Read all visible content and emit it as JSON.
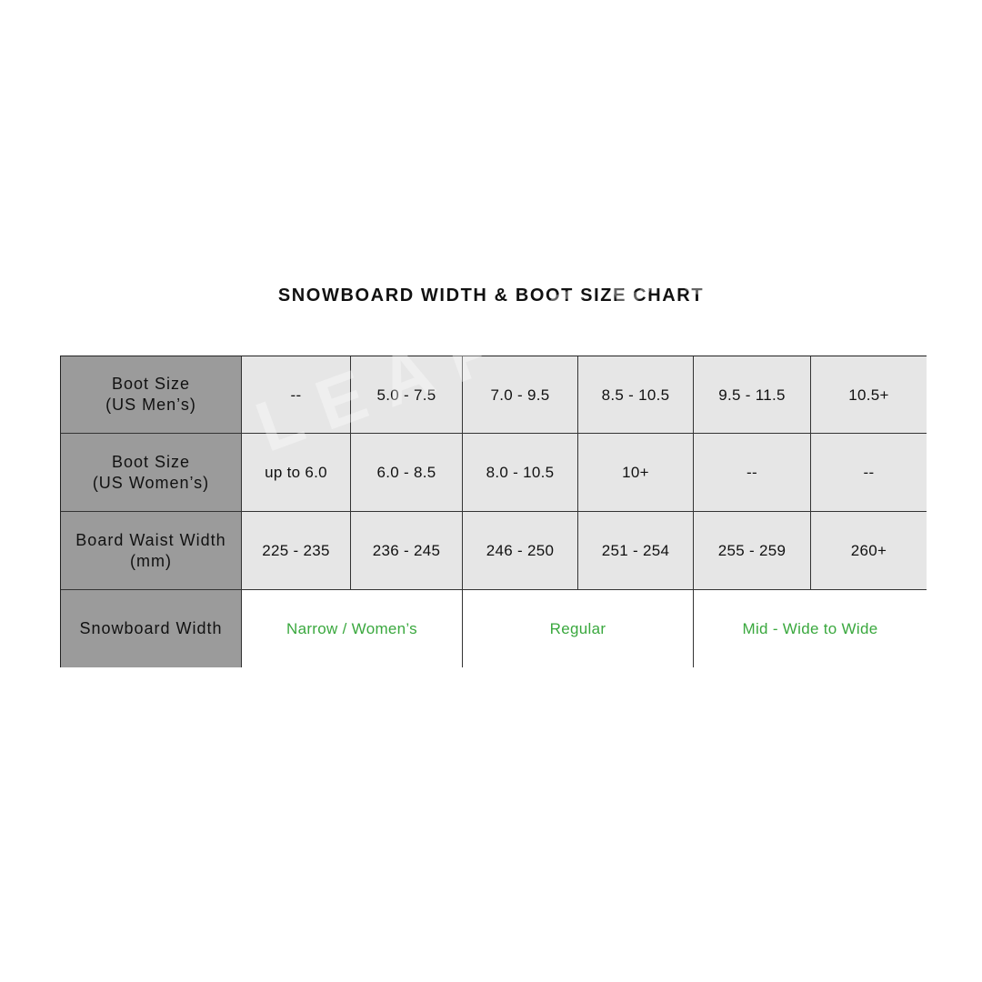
{
  "title": "SNOWBOARD WIDTH & BOOT SIZE CHART",
  "watermark": "LEAP SPORTS",
  "colors": {
    "header_bg": "#9b9b9b",
    "cell_bg": "#e6e6e6",
    "width_text": "#3aa83e"
  },
  "rows": [
    {
      "label": "Boot Size\n(US Men’s)",
      "values": [
        "--",
        "5.0 - 7.5",
        "7.0 - 9.5",
        "8.5 - 10.5",
        "9.5 - 11.5",
        "10.5+"
      ]
    },
    {
      "label": "Boot Size\n(US Women’s)",
      "values": [
        "up to 6.0",
        "6.0 - 8.5",
        "8.0 - 10.5",
        "10+",
        "--",
        "--"
      ]
    },
    {
      "label": "Board Waist Width\n(mm)",
      "values": [
        "225 - 235",
        "236 - 245",
        "246 - 250",
        "251 - 254",
        "255 - 259",
        "260+"
      ]
    }
  ],
  "width_row": {
    "label": "Snowboard Width",
    "values": [
      "Narrow / Women’s",
      "Regular",
      "Mid - Wide to Wide"
    ]
  }
}
